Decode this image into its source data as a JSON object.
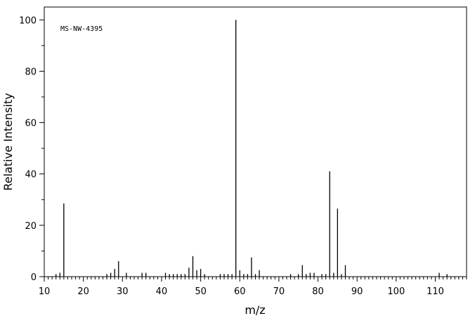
{
  "chart_data": {
    "type": "bar",
    "title": "",
    "annotation": "MS-NW-4395",
    "xlabel": "m/z",
    "ylabel": "Relative Intensity",
    "xlim": [
      10,
      118
    ],
    "ylim": [
      0,
      105
    ],
    "x_ticks": [
      10,
      20,
      30,
      40,
      50,
      60,
      70,
      80,
      90,
      100,
      110
    ],
    "y_ticks": [
      0,
      20,
      40,
      60,
      80,
      100
    ],
    "grid": false,
    "legend": "none",
    "bar_color": "#000000",
    "series": [
      {
        "x": [
          13,
          14,
          15,
          26,
          27,
          28,
          29,
          31,
          35,
          36,
          41,
          42,
          43,
          44,
          45,
          46,
          47,
          48,
          49,
          50,
          51,
          55,
          56,
          57,
          58,
          59,
          60,
          61,
          62,
          63,
          64,
          65,
          73,
          75,
          76,
          77,
          78,
          79,
          81,
          82,
          83,
          84,
          85,
          86,
          87,
          111,
          113
        ],
        "y": [
          1.0,
          1.5,
          28.5,
          1.0,
          1.5,
          3.0,
          6.0,
          1.5,
          1.5,
          1.5,
          1.5,
          1.0,
          1.0,
          1.0,
          1.0,
          1.0,
          3.5,
          8.0,
          2.5,
          3.0,
          1.0,
          1.0,
          1.0,
          1.0,
          1.0,
          100.0,
          2.5,
          1.0,
          1.0,
          7.5,
          1.0,
          2.5,
          1.0,
          1.0,
          4.5,
          1.0,
          1.5,
          1.5,
          1.0,
          1.0,
          41.0,
          1.5,
          26.5,
          1.0,
          4.5,
          1.5,
          1.0
        ]
      }
    ]
  }
}
